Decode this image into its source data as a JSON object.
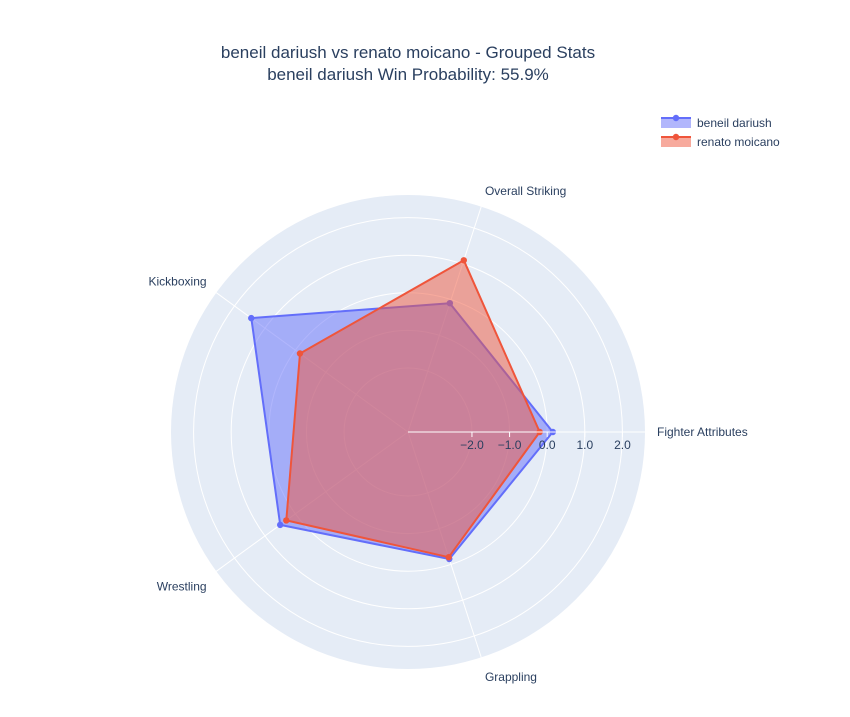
{
  "chart_data": {
    "type": "radar",
    "title": "beneil dariush vs renato moicano - Grouped Stats",
    "subtitle": "beneil dariush Win Probability: 55.9%",
    "categories": [
      "Fighter Attributes",
      "Overall Striking",
      "Kickboxing",
      "Wrestling",
      "Grappling"
    ],
    "series": [
      {
        "name": "beneil dariush",
        "values": [
          0.15,
          -0.1,
          1.45,
          0.5,
          -0.15
        ],
        "color": "#636efa"
      },
      {
        "name": "renato moicano",
        "values": [
          -0.2,
          1.1,
          -0.15,
          0.3,
          -0.2
        ],
        "color": "#ef553b"
      }
    ],
    "radial_range": [
      -3.7,
      2.6
    ],
    "radial_ticks": [
      -2,
      -1,
      0,
      1,
      2
    ],
    "radial_tick_labels": [
      "−2.0",
      "−1.0",
      "0.0",
      "1.0",
      "2.0"
    ],
    "legend_position": "top-right",
    "grid": true
  }
}
